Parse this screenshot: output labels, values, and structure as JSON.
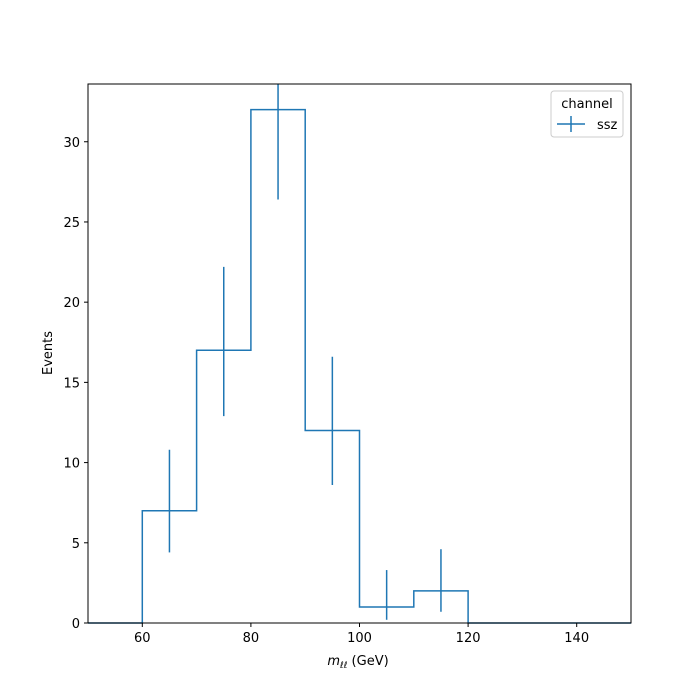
{
  "chart_data": {
    "type": "histogram-step",
    "x": {
      "label_main": "m",
      "label_sub": "ℓℓ",
      "label_unit": " (GeV)",
      "lim": [
        50,
        150
      ],
      "ticks": [
        60,
        80,
        100,
        120,
        140
      ]
    },
    "y": {
      "label": "Events",
      "lim": [
        0,
        33.6
      ],
      "ticks": [
        0,
        5,
        10,
        15,
        20,
        25,
        30
      ]
    },
    "bin_edges": [
      50,
      60,
      70,
      80,
      90,
      100,
      110,
      120,
      130,
      140,
      150
    ],
    "series": [
      {
        "name": "ssz",
        "color": "#1f77b4",
        "values": [
          0,
          7,
          17,
          32,
          12,
          1,
          2,
          0,
          0,
          0
        ],
        "errorbars": [
          {
            "x": 65,
            "y": 7,
            "low": 4.4,
            "high": 10.8
          },
          {
            "x": 75,
            "y": 17,
            "low": 12.9,
            "high": 22.2
          },
          {
            "x": 85,
            "y": 32,
            "low": 26.4,
            "high": 33.6
          },
          {
            "x": 95,
            "y": 12,
            "low": 8.6,
            "high": 16.6
          },
          {
            "x": 105,
            "y": 1,
            "low": 0.2,
            "high": 3.3
          },
          {
            "x": 115,
            "y": 2,
            "low": 0.7,
            "high": 4.6
          }
        ]
      }
    ],
    "legend": {
      "title": "channel",
      "position": "top-right"
    },
    "grid": false
  }
}
